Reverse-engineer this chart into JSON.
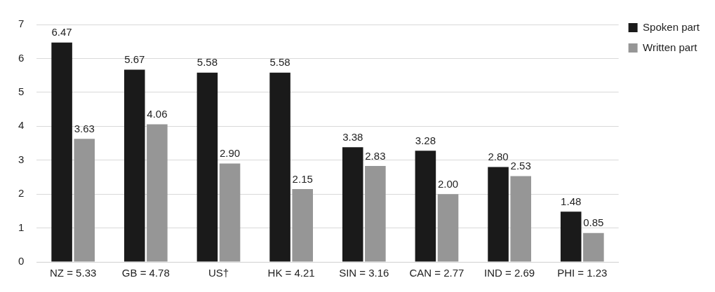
{
  "chart_data": {
    "type": "bar",
    "categories": [
      "NZ = 5.33",
      "GB = 4.78",
      "US†",
      "HK = 4.21",
      "SIN = 3.16",
      "CAN = 2.77",
      "IND = 2.69",
      "PHI = 1.23"
    ],
    "series": [
      {
        "name": "Spoken part",
        "color": "#1a1a1a",
        "values": [
          6.47,
          5.67,
          5.58,
          5.58,
          3.38,
          3.28,
          2.8,
          1.48
        ],
        "value_labels": [
          "6.47",
          "5.67",
          "5.58",
          "5.58",
          "3.38",
          "3.28",
          "2.80",
          "1.48"
        ]
      },
      {
        "name": "Written part",
        "color": "#969696",
        "values": [
          3.63,
          4.06,
          2.9,
          2.15,
          2.83,
          2.0,
          2.53,
          0.85
        ],
        "value_labels": [
          "3.63",
          "4.06",
          "2.90",
          "2.15",
          "2.83",
          "2.00",
          "2.53",
          "0.85"
        ]
      }
    ],
    "ylim": [
      0,
      7
    ],
    "yticks": [
      0,
      1,
      2,
      3,
      4,
      5,
      6,
      7
    ],
    "grid": "y",
    "legend": "top right"
  }
}
